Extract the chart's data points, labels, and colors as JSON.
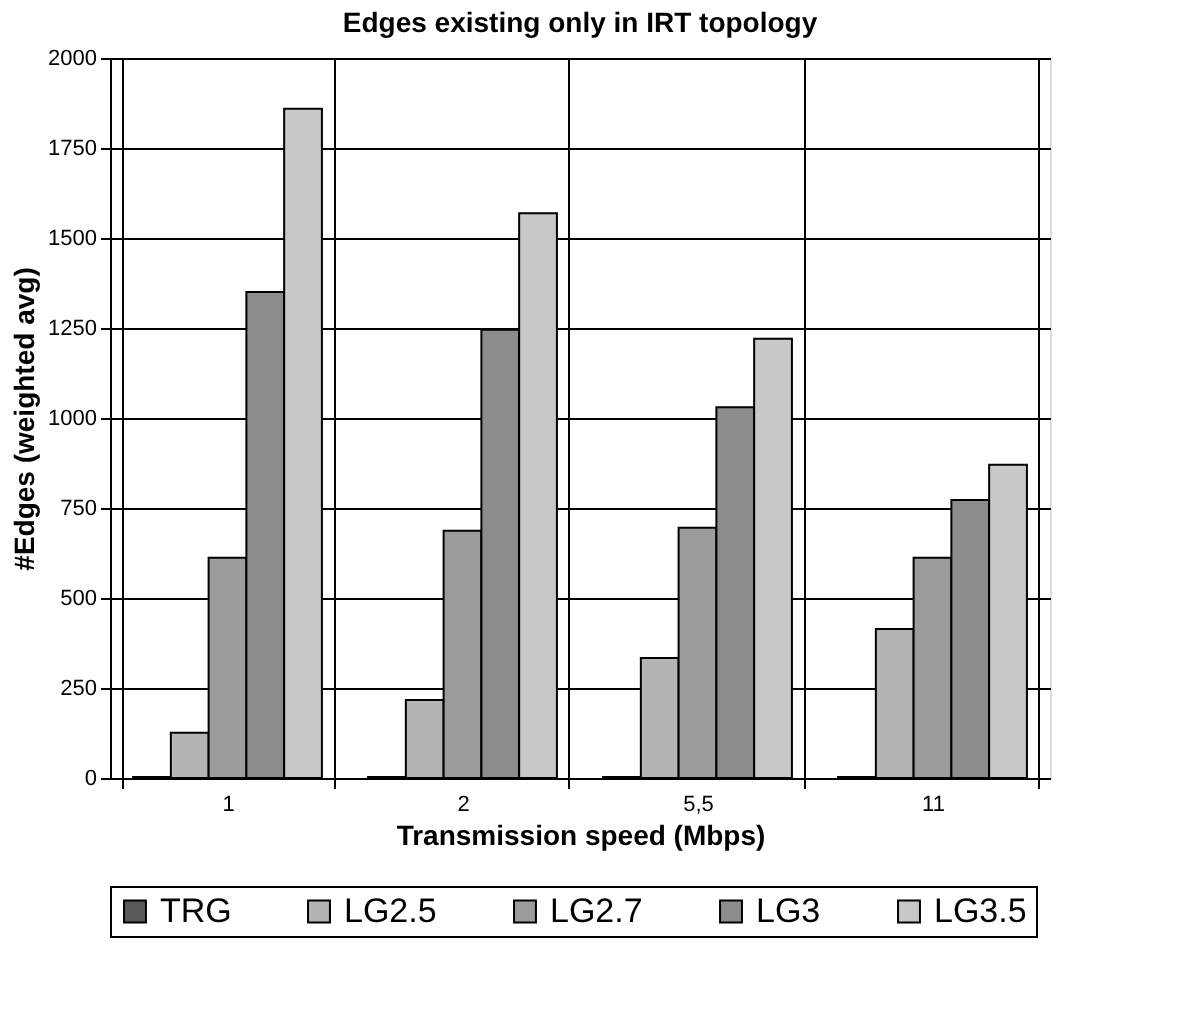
{
  "chart_data": {
    "type": "bar",
    "title": "Edges existing only in IRT topology",
    "xlabel": "Transmission speed (Mbps)",
    "ylabel": "#Edges (weighted avg)",
    "categories": [
      "1",
      "2",
      "5,5",
      "11"
    ],
    "series": [
      {
        "name": "TRG",
        "color": "#5a5a5a",
        "values": [
          3,
          3,
          3,
          3
        ]
      },
      {
        "name": "LG2.5",
        "color": "#b4b4b4",
        "values": [
          126,
          217,
          333,
          414
        ]
      },
      {
        "name": "LG2.7",
        "color": "#9c9c9c",
        "values": [
          612,
          687,
          695,
          612
        ]
      },
      {
        "name": "LG3",
        "color": "#8c8c8c",
        "values": [
          1350,
          1245,
          1030,
          772
        ]
      },
      {
        "name": "LG3.5",
        "color": "#c8c8c8",
        "values": [
          1859,
          1569,
          1220,
          870
        ]
      }
    ],
    "ylim": [
      0,
      2000
    ],
    "yticks": [
      0,
      250,
      500,
      750,
      1000,
      1250,
      1500,
      1750,
      2000
    ],
    "grid": true,
    "legend": "bottom"
  }
}
